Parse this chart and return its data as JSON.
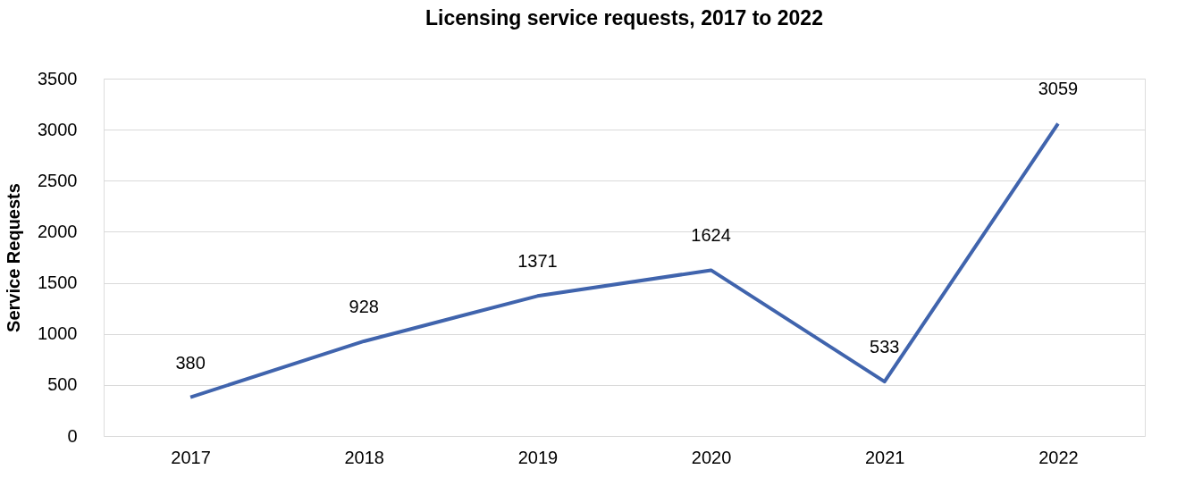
{
  "chart_data": {
    "type": "line",
    "title": "Licensing service requests, 2017 to 2022",
    "ylabel": "Service Requests",
    "categories": [
      "2017",
      "2018",
      "2019",
      "2020",
      "2021",
      "2022"
    ],
    "series": [
      {
        "color": "#4064ad",
        "values": [
          380,
          928,
          1371,
          1624,
          533,
          3059
        ]
      }
    ],
    "ylim": [
      0,
      3500
    ],
    "yticks": [
      0,
      500,
      1000,
      1500,
      2000,
      2500,
      3000,
      3500
    ],
    "grid": "y",
    "data_labels": true,
    "marker": "none",
    "line_style": "solid"
  }
}
